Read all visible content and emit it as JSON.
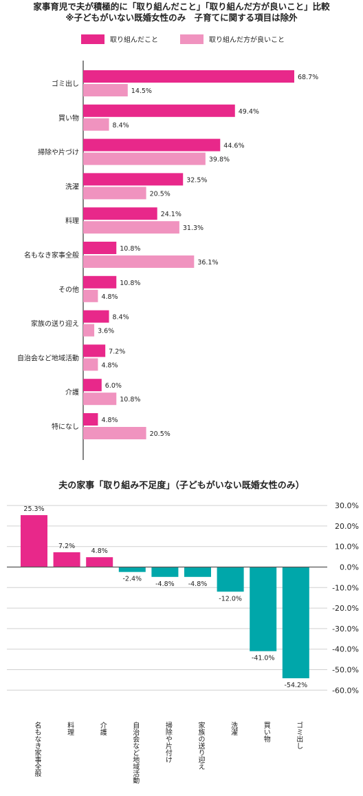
{
  "titles": {
    "line1": "家事育児で夫が積極的に「取り組んだこと」「取り組んだ方が良いこと」比較",
    "line2": "※子どもがいない既婚女性のみ　子育てに関する項目は除外",
    "chart2_title": "夫の家事「取り組み不足度」（子どもがいない既婚女性のみ）"
  },
  "colors": {
    "did": "#e8288a",
    "should": "#f093bf",
    "positive": "#e8288a",
    "negative": "#00a7aa"
  },
  "chart_data": [
    {
      "type": "bar",
      "orientation": "horizontal",
      "title": "家事育児で夫が積極的に「取り組んだこと」「取り組んだ方が良いこと」比較",
      "subtitle": "※子どもがいない既婚女性のみ　子育てに関する項目は除外",
      "categories": [
        "ゴミ出し",
        "買い物",
        "掃除や片づけ",
        "洗濯",
        "料理",
        "名もなき家事全般",
        "その他",
        "家族の送り迎え",
        "自治会など地域活動",
        "介護",
        "特になし"
      ],
      "series": [
        {
          "name": "取り組んだこと",
          "values": [
            68.7,
            49.4,
            44.6,
            32.5,
            24.1,
            10.8,
            10.8,
            8.4,
            7.2,
            6.0,
            4.8
          ],
          "labels": [
            "68.7%",
            "49.4%",
            "44.6%",
            "32.5%",
            "24.1%",
            "10.8%",
            "10.8%",
            "8.4%",
            "7.2%",
            "6.0%",
            "4.8%"
          ]
        },
        {
          "name": "取り組んだ方が良いこと",
          "values": [
            14.5,
            8.4,
            39.8,
            20.5,
            31.3,
            36.1,
            4.8,
            3.6,
            4.8,
            10.8,
            20.5
          ],
          "labels": [
            "14.5%",
            "8.4%",
            "39.8%",
            "20.5%",
            "31.3%",
            "36.1%",
            "4.8%",
            "3.6%",
            "4.8%",
            "10.8%",
            "20.5%"
          ]
        }
      ],
      "legend": "top"
    },
    {
      "type": "bar",
      "orientation": "vertical",
      "title": "夫の家事「取り組み不足度」（子どもがいない既婚女性のみ）",
      "categories": [
        "名もなき家事全般",
        "料理",
        "介護",
        "自治会など地域活動",
        "掃除や片付け",
        "家族の送り迎え",
        "洗濯",
        "買い物",
        "ゴミ出し"
      ],
      "values": [
        25.3,
        7.2,
        4.8,
        -2.4,
        -4.8,
        -4.8,
        -12.0,
        -41.0,
        -54.2
      ],
      "labels": [
        "25.3%",
        "7.2%",
        "4.8%",
        "-2.4%",
        "-4.8%",
        "-4.8%",
        "-12.0%",
        "-41.0%",
        "-54.2%"
      ],
      "yticks": [
        "30.0%",
        "20.0%",
        "10.0%",
        "0.0%",
        "-10.0%",
        "-20.0%",
        "-30.0%",
        "-40.0%",
        "-50.0%",
        "-60.0%"
      ],
      "ylim": [
        -60,
        30
      ],
      "grid": true,
      "y_axis_side": "right"
    }
  ]
}
